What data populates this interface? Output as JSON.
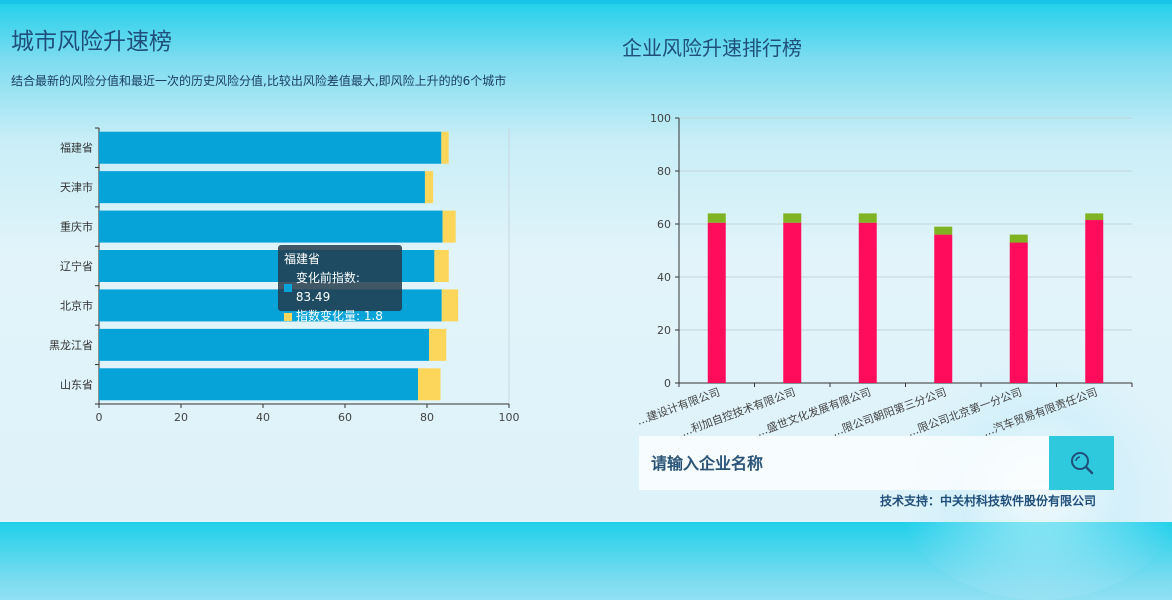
{
  "left_panel": {
    "title": "城市风险升速榜",
    "description": "结合最新的风险分值和最近一次的历史风险分值,比较出风险差值最大,即风险上升的的6个城市"
  },
  "right_panel": {
    "title": "企业风险升速排行榜"
  },
  "tooltip": {
    "category": "福建省",
    "row1": "变化前指数: 83.49",
    "row2": "指数变化量: 1.8"
  },
  "search": {
    "placeholder": "请输入企业名称"
  },
  "footer": {
    "text": "技术支持：中关村科技软件股份有限公司"
  },
  "colors": {
    "bar_base": "#06a3d9",
    "bar_change": "#fcd65a",
    "bar_red": "#ff0d5c",
    "bar_green": "#80b321"
  },
  "chart_data": [
    {
      "type": "bar",
      "orientation": "horizontal",
      "stacked": true,
      "categories": [
        "福建省",
        "天津市",
        "重庆市",
        "辽宁省",
        "北京市",
        "黑龙江省",
        "山东省"
      ],
      "series": [
        {
          "name": "变化前指数",
          "values": [
            83.49,
            79.5,
            83.8,
            81.8,
            83.6,
            80.5,
            77.8
          ]
        },
        {
          "name": "指数变化量",
          "values": [
            1.8,
            2.0,
            3.2,
            3.5,
            4.0,
            4.2,
            5.5
          ]
        }
      ],
      "xlim": [
        0,
        100
      ],
      "x_ticks": [
        "0",
        "20",
        "40",
        "60",
        "80",
        "100"
      ]
    },
    {
      "type": "bar",
      "orientation": "vertical",
      "stacked": true,
      "categories": [
        "...建设计有限公司",
        "...利加自控技术有限公司",
        "...盛世文化发展有限公司",
        "...限公司朝阳第三分公司",
        "...限公司北京第一分公司",
        "...汽车贸易有限责任公司"
      ],
      "series": [
        {
          "values": [
            60.5,
            60.5,
            60.5,
            56.0,
            53.0,
            61.5
          ]
        },
        {
          "values": [
            3.5,
            3.5,
            3.5,
            3.0,
            3.0,
            2.5
          ]
        }
      ],
      "ylim": [
        0,
        100
      ],
      "y_ticks": [
        "0",
        "20",
        "40",
        "60",
        "80",
        "100"
      ],
      "grid": true
    }
  ]
}
